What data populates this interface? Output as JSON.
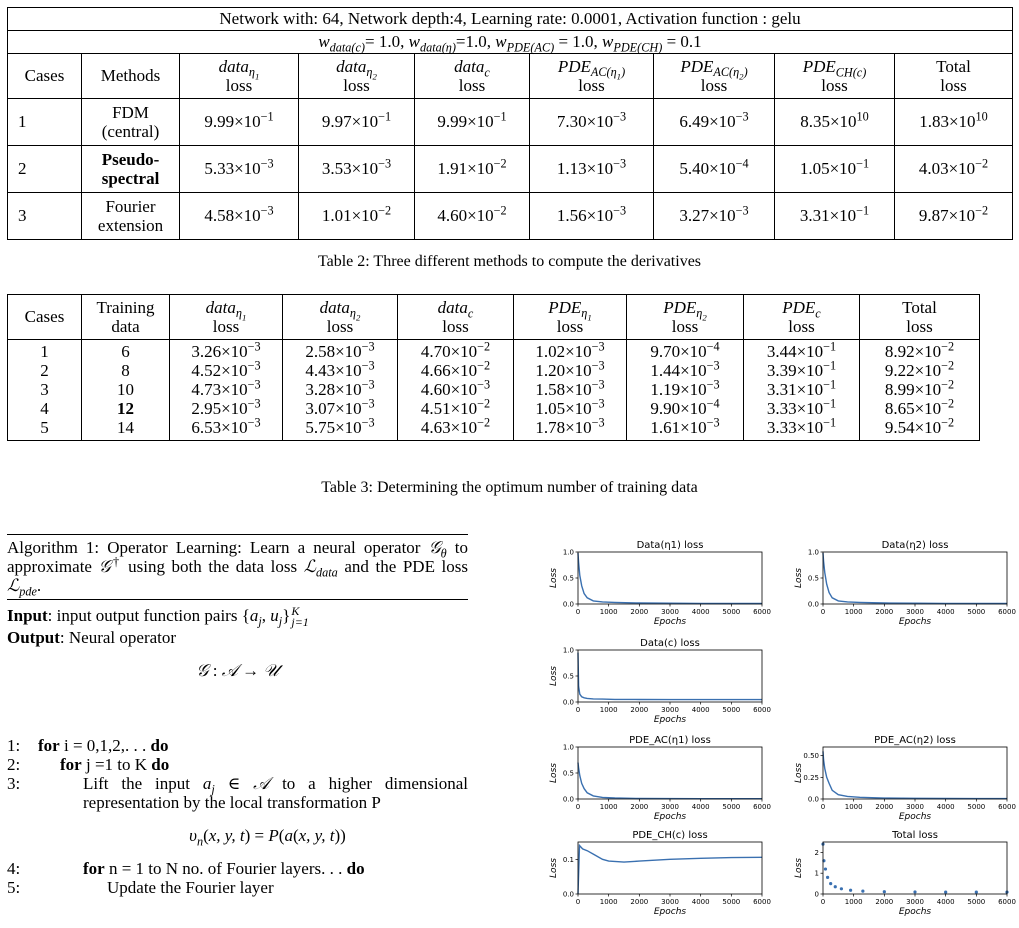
{
  "table2": {
    "title": "Network with: 64, Network depth:4, Learning rate: 0.0001, Activation function : gelu",
    "weights": "w_data(c)= 1.0, w_data(η)=1.0, w_PDE(AC) = 1.0, w_PDE(CH) = 0.1",
    "headers": [
      "Cases",
      "Methods",
      "data_η1 loss",
      "data_η2 loss",
      "data_c loss",
      "PDE_AC(η1) loss",
      "PDE_AC(η2) loss",
      "PDE_CH(c) loss",
      "Total loss"
    ],
    "rows": [
      {
        "case": "1",
        "method": [
          "FDM",
          "(central)"
        ],
        "values": [
          "9.99×10^-1",
          "9.97×10^-1",
          "9.99×10^-1",
          "7.30×10^-3",
          "6.49×10^-3",
          "8.35×10^10",
          "1.83×10^10"
        ]
      },
      {
        "case": "2",
        "method": [
          "Pseudo-",
          "spectral"
        ],
        "values": [
          "5.33×10^-3",
          "3.53×10^-3",
          "1.91×10^-2",
          "1.13×10^-3",
          "5.40×10^-4",
          "1.05×10^-1",
          "4.03×10^-2"
        ]
      },
      {
        "case": "3",
        "method": [
          "Fourier",
          "extension"
        ],
        "values": [
          "4.58×10^-3",
          "1.01×10^-2",
          "4.60×10^-2",
          "1.56×10^-3",
          "3.27×10^-3",
          "3.31×10^-1",
          "9.87×10^-2"
        ]
      }
    ],
    "caption": "Table 2: Three different methods to compute the derivatives"
  },
  "table3": {
    "headers": [
      "Cases",
      "Training data",
      "data_η1 loss",
      "data_η2 loss",
      "data_c loss",
      "PDE_η1 loss",
      "PDE_η2 loss",
      "PDE_c loss",
      "Total loss"
    ],
    "rows": [
      {
        "case": "1",
        "training": "6",
        "values": [
          "3.26×10^-3",
          "2.58×10^-3",
          "4.70×10^-2",
          "1.02×10^-3",
          "9.70×10^-4",
          "3.44×10^-1",
          "8.92×10^-2"
        ]
      },
      {
        "case": "2",
        "training": "8",
        "values": [
          "4.52×10^-3",
          "4.43×10^-3",
          "4.66×10^-2",
          "1.20×10^-3",
          "1.44×10^-3",
          "3.39×10^-1",
          "9.22×10^-2"
        ]
      },
      {
        "case": "3",
        "training": "10",
        "values": [
          "4.73×10^-3",
          "3.28×10^-3",
          "4.60×10^-3",
          "1.58×10^-3",
          "1.19×10^-3",
          "3.31×10^-1",
          "8.99×10^-2"
        ]
      },
      {
        "case": "4",
        "training": "12",
        "values": [
          "2.95×10^-3",
          "3.07×10^-3",
          "4.51×10^-2",
          "1.05×10^-3",
          "9.90×10^-4",
          "3.33×10^-1",
          "8.65×10^-2"
        ]
      },
      {
        "case": "5",
        "training": "14",
        "values": [
          "6.53×10^-3",
          "5.75×10^-3",
          "4.63×10^-2",
          "1.78×10^-3",
          "1.61×10^-3",
          "3.33×10^-1",
          "9.54×10^-2"
        ]
      }
    ],
    "caption": "Table 3: Determining the optimum number of training data"
  },
  "algorithm": {
    "title": "Algorithm 1: Operator Learning: Learn a neural operator G_θ to approximate G† using both the data loss L_data and the PDE loss L_pde.",
    "input": "input output function pairs {a_j, u_j}_{j=1}^K",
    "output": "Neural operator",
    "map": "G : A → U",
    "steps": [
      "for i = 0,1,2,... do",
      "for j =1 to K do",
      "Lift the input a_j ∈ A to a higher dimensional representation by the local transformation P",
      "v_n(x, y, t) = P(a(x, y, t))",
      "for n = 1 to N no. of Fourier layers... do",
      "Update the Fourier layer"
    ]
  },
  "chart_data": [
    {
      "type": "line",
      "title": "Data(η1) loss",
      "xlabel": "Epochs",
      "ylabel": "Loss",
      "xlim": [
        0,
        6000
      ],
      "ylim": [
        0,
        1.0
      ],
      "xticks": [
        0,
        1000,
        2000,
        3000,
        4000,
        5000,
        6000
      ],
      "yticks": [
        0.0,
        0.5,
        1.0
      ],
      "x": [
        0,
        20,
        60,
        120,
        200,
        300,
        500,
        800,
        1200,
        2000,
        3000,
        4000,
        5000,
        6000
      ],
      "y": [
        0.98,
        0.8,
        0.55,
        0.35,
        0.2,
        0.12,
        0.06,
        0.04,
        0.03,
        0.02,
        0.015,
        0.012,
        0.01,
        0.01
      ]
    },
    {
      "type": "line",
      "title": "Data(η2) loss",
      "xlabel": "Epochs",
      "ylabel": "Loss",
      "xlim": [
        0,
        6000
      ],
      "ylim": [
        0,
        1.0
      ],
      "xticks": [
        0,
        1000,
        2000,
        3000,
        4000,
        5000,
        6000
      ],
      "yticks": [
        0.0,
        0.5,
        1.0
      ],
      "x": [
        0,
        20,
        60,
        120,
        200,
        300,
        500,
        800,
        1200,
        2000,
        3000,
        4000,
        5000,
        6000
      ],
      "y": [
        0.98,
        0.82,
        0.6,
        0.38,
        0.22,
        0.12,
        0.06,
        0.04,
        0.03,
        0.02,
        0.015,
        0.012,
        0.01,
        0.01
      ]
    },
    {
      "type": "line",
      "title": "Data(c) loss",
      "xlabel": "Epochs",
      "ylabel": "Loss",
      "xlim": [
        0,
        6000
      ],
      "ylim": [
        0,
        1.0
      ],
      "xticks": [
        0,
        1000,
        2000,
        3000,
        4000,
        5000,
        6000
      ],
      "yticks": [
        0.0,
        0.5,
        1.0
      ],
      "x": [
        0,
        20,
        60,
        120,
        200,
        300,
        500,
        800,
        1200,
        2000,
        3000,
        4000,
        5000,
        6000
      ],
      "y": [
        0.95,
        0.3,
        0.15,
        0.1,
        0.08,
        0.07,
        0.06,
        0.055,
        0.05,
        0.048,
        0.047,
        0.046,
        0.046,
        0.046
      ]
    },
    {
      "type": "line",
      "title": "PDE_AC(η1) loss",
      "xlabel": "Epochs",
      "ylabel": "Loss",
      "xlim": [
        0,
        6000
      ],
      "ylim": [
        0,
        1.0
      ],
      "xticks": [
        0,
        1000,
        2000,
        3000,
        4000,
        5000,
        6000
      ],
      "yticks": [
        0.0,
        0.5,
        1.0
      ],
      "x": [
        0,
        20,
        60,
        120,
        200,
        300,
        500,
        800,
        1200,
        2000,
        3000,
        4000,
        5000,
        6000
      ],
      "y": [
        0.7,
        0.6,
        0.45,
        0.3,
        0.2,
        0.12,
        0.06,
        0.03,
        0.02,
        0.01,
        0.008,
        0.006,
        0.005,
        0.005
      ]
    },
    {
      "type": "line",
      "title": "PDE_AC(η2) loss",
      "xlabel": "Epochs",
      "ylabel": "Loss",
      "xlim": [
        0,
        6000
      ],
      "ylim": [
        0,
        0.6
      ],
      "xticks": [
        0,
        1000,
        2000,
        3000,
        4000,
        5000,
        6000
      ],
      "yticks": [
        0.0,
        0.25,
        0.5
      ],
      "x": [
        0,
        20,
        60,
        120,
        200,
        300,
        500,
        800,
        1200,
        2000,
        3000,
        4000,
        5000,
        6000
      ],
      "y": [
        0.55,
        0.45,
        0.35,
        0.25,
        0.18,
        0.1,
        0.05,
        0.03,
        0.02,
        0.01,
        0.008,
        0.006,
        0.005,
        0.005
      ]
    },
    {
      "type": "line",
      "title": "PDE_CH(c) loss",
      "xlabel": "Epochs",
      "ylabel": "Loss",
      "xlim": [
        0,
        6000
      ],
      "ylim": [
        0,
        0.15
      ],
      "xticks": [
        0,
        1000,
        2000,
        3000,
        4000,
        5000,
        6000
      ],
      "yticks": [
        0.0,
        0.1
      ],
      "x": [
        0,
        50,
        150,
        300,
        500,
        800,
        1000,
        1500,
        2000,
        3000,
        4000,
        5000,
        6000
      ],
      "y": [
        0.0,
        0.14,
        0.13,
        0.125,
        0.115,
        0.1,
        0.095,
        0.092,
        0.095,
        0.1,
        0.103,
        0.105,
        0.106
      ]
    },
    {
      "type": "scatter",
      "title": "Total loss",
      "xlabel": "Epochs",
      "ylabel": "Loss",
      "xlim": [
        0,
        6000
      ],
      "ylim": [
        0,
        2.5
      ],
      "xticks": [
        0,
        1000,
        2000,
        3000,
        4000,
        5000,
        6000
      ],
      "yticks": [
        0,
        1,
        2
      ],
      "x": [
        0,
        30,
        80,
        150,
        250,
        400,
        600,
        900,
        1300,
        2000,
        3000,
        4000,
        5000,
        6000
      ],
      "y": [
        2.4,
        1.6,
        1.2,
        0.8,
        0.5,
        0.35,
        0.25,
        0.18,
        0.14,
        0.11,
        0.1,
        0.09,
        0.09,
        0.09
      ]
    }
  ]
}
